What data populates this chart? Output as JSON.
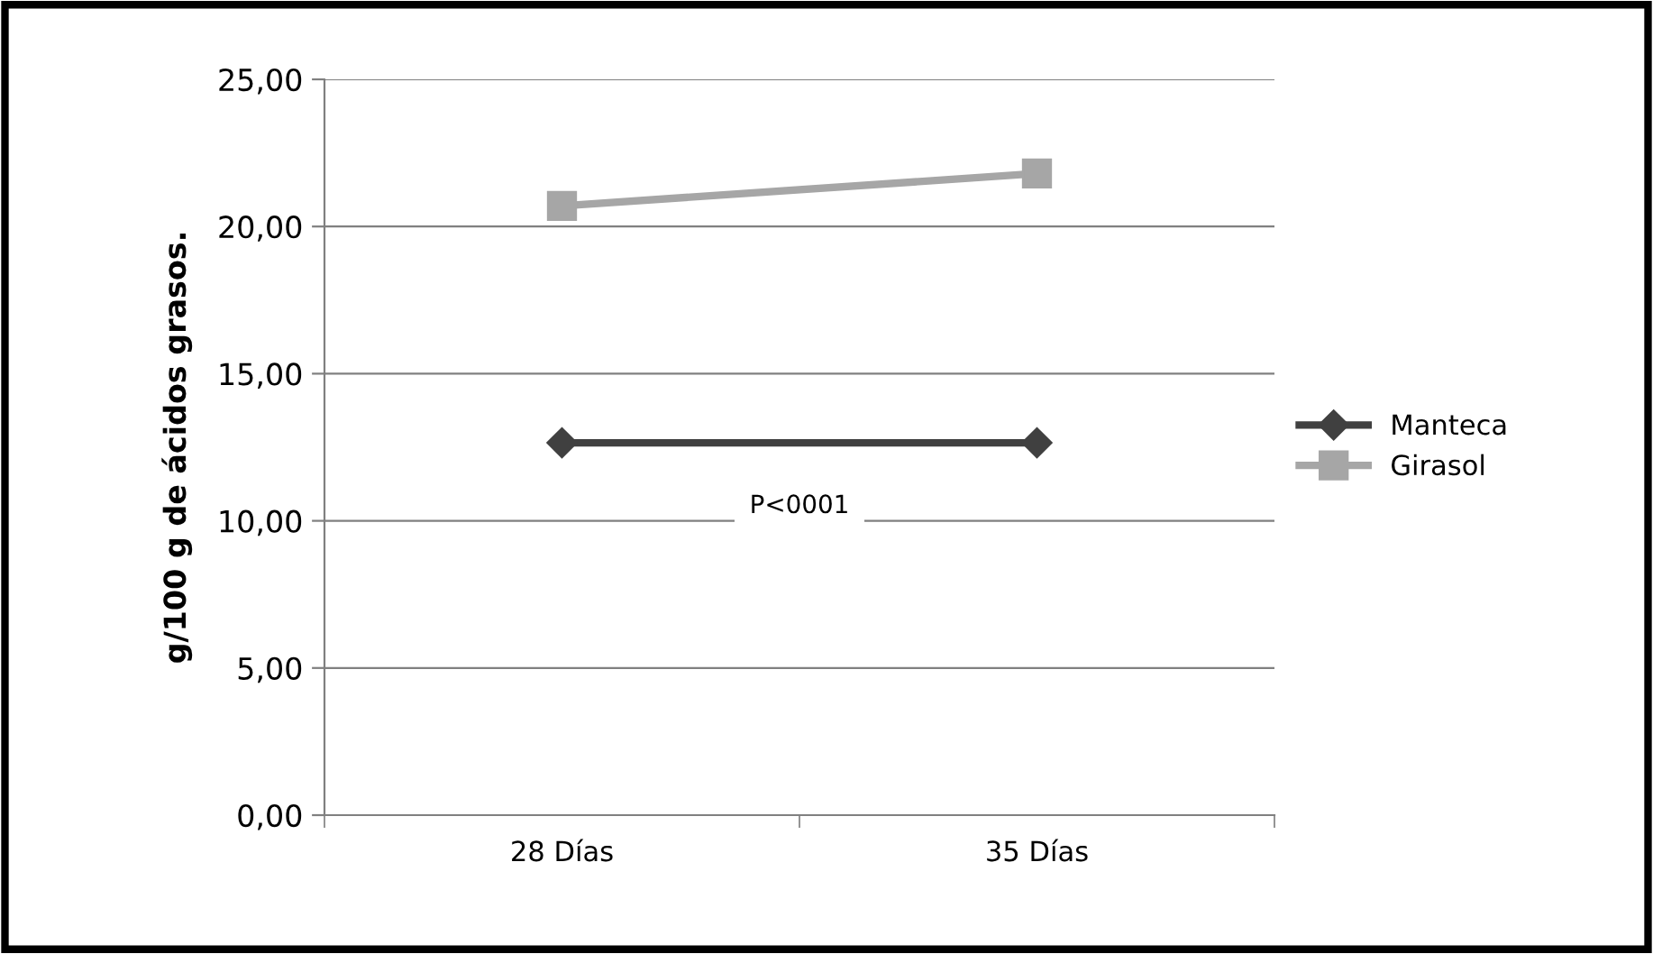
{
  "chart_data": {
    "type": "line",
    "ylabel": "g/100 g de ácidos grasos.",
    "categories": [
      "28 Días",
      "35 Días"
    ],
    "series": [
      {
        "name": "Manteca",
        "color": "#404040",
        "values": [
          12.65,
          12.65
        ],
        "marker": "diamond"
      },
      {
        "name": "Girasol",
        "color": "#a6a6a6",
        "values": [
          20.7,
          21.8
        ],
        "marker": "square"
      }
    ],
    "ylim": [
      0,
      25
    ],
    "yticks": [
      {
        "value": 0,
        "label": "0,00"
      },
      {
        "value": 5,
        "label": "5,00"
      },
      {
        "value": 10,
        "label": "10,00"
      },
      {
        "value": 15,
        "label": "15,00"
      },
      {
        "value": 20,
        "label": "20,00"
      },
      {
        "value": 25,
        "label": "25,00"
      }
    ],
    "grid": "y",
    "legend": "right",
    "annotations": [
      "P<0001"
    ]
  }
}
